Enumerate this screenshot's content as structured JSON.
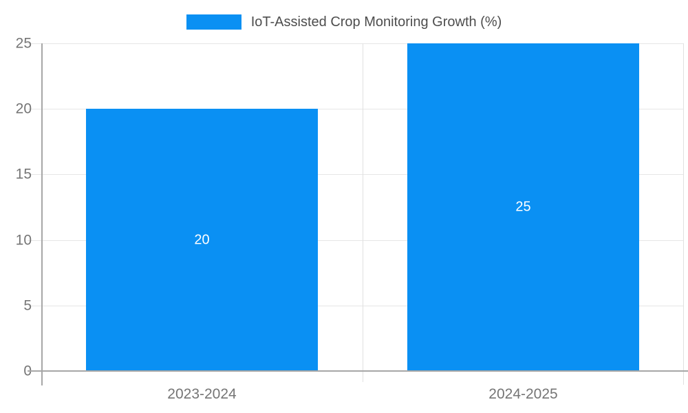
{
  "legend": {
    "label": "IoT-Assisted Crop Monitoring Growth (%)"
  },
  "chart_data": {
    "type": "bar",
    "title": "IoT-Assisted Crop Monitoring Growth (%)",
    "categories": [
      "2023-2024",
      "2024-2025"
    ],
    "values": [
      20,
      25
    ],
    "bar_labels": [
      "20",
      "25"
    ],
    "xlabel": "",
    "ylabel": "",
    "ylim": [
      0,
      25
    ],
    "yticks": [
      0,
      5,
      10,
      15,
      20,
      25
    ],
    "grid": true,
    "legend_position": "top",
    "colors": {
      "bar": "#0a90f3",
      "axis": "#a6a6a6",
      "gridline": "#e6e6e6",
      "boundary_line": "#e0e0e0",
      "tick_label_text": "#757575",
      "category_label_text": "#757575",
      "bar_label_text": "#ffffff",
      "legend_text": "#4d4d4d"
    }
  }
}
